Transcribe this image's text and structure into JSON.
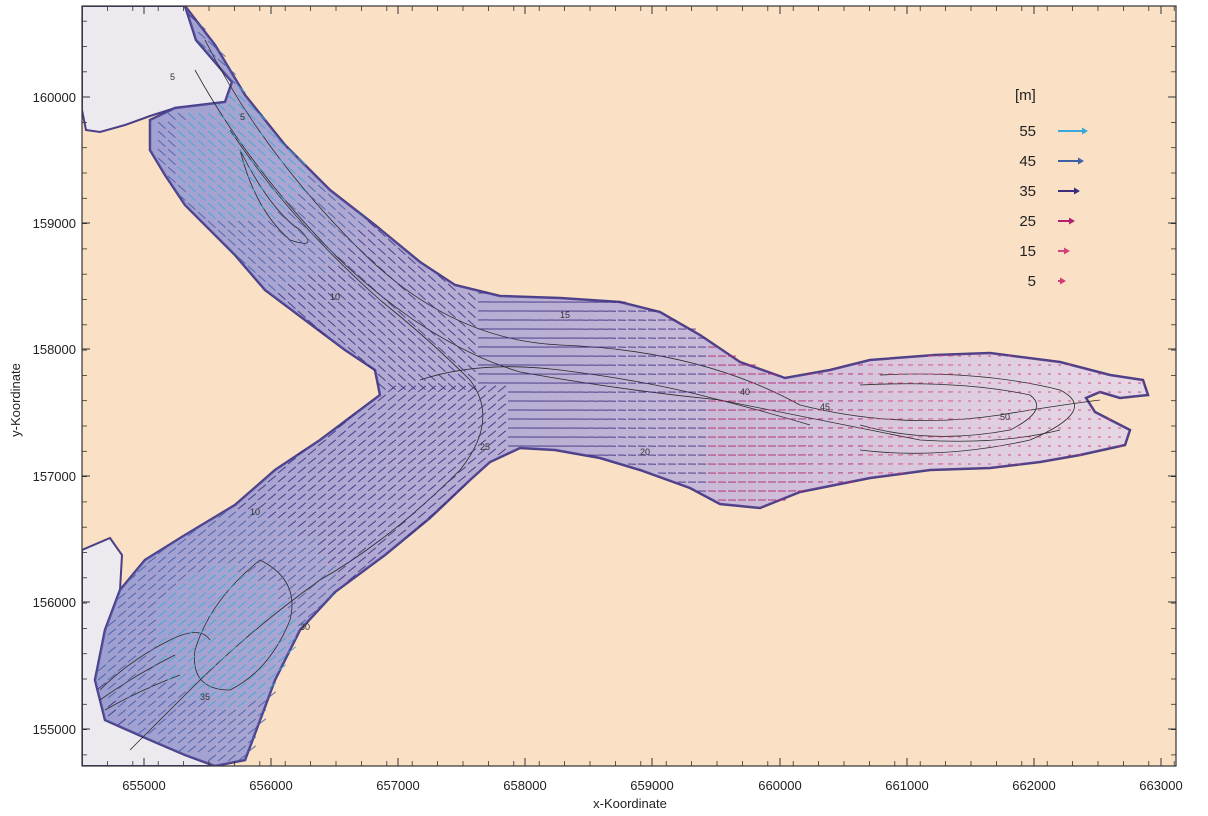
{
  "map": {
    "xlabel": "x-Koordinate",
    "ylabel": "y-Koordinate",
    "x_ticks": [
      "655000",
      "656000",
      "657000",
      "658000",
      "659000",
      "660000",
      "661000",
      "662000",
      "663000"
    ],
    "y_ticks": [
      "160000",
      "159000",
      "158000",
      "157000",
      "156000",
      "155000"
    ],
    "colors": {
      "land": "#fae0c4",
      "water": "#ece9ef",
      "shore": "#4a3f86",
      "contour": "#2b2b2b"
    },
    "legend": {
      "title": "[m]",
      "items": [
        {
          "label": "55",
          "color": "#38a9d8"
        },
        {
          "label": "45",
          "color": "#3f5ea8"
        },
        {
          "label": "35",
          "color": "#3b2c7e"
        },
        {
          "label": "25",
          "color": "#b0206e"
        },
        {
          "label": "15",
          "color": "#d8407a"
        },
        {
          "label": "5",
          "color": "#d23a78"
        }
      ]
    },
    "contour_labels": [
      "5",
      "10",
      "15",
      "20",
      "25",
      "30",
      "35",
      "40",
      "45",
      "50"
    ]
  }
}
